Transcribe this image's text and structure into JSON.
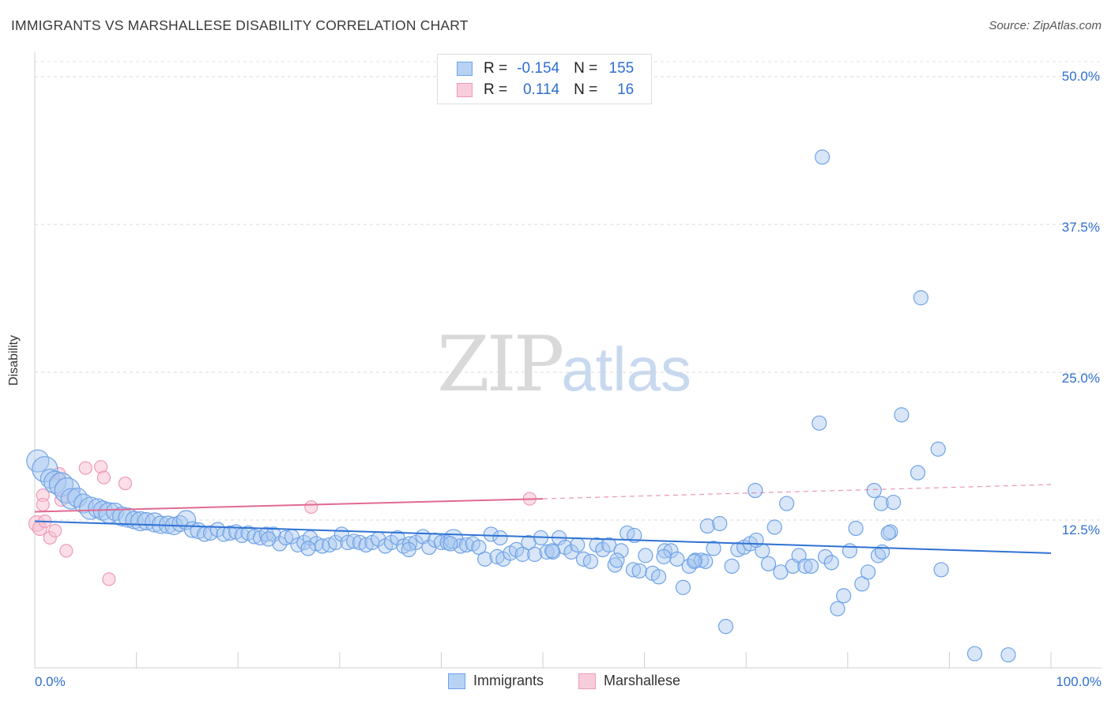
{
  "title": "IMMIGRANTS VS MARSHALLESE DISABILITY CORRELATION CHART",
  "source": "Source: ZipAtlas.com",
  "watermark": {
    "zip": "ZIP",
    "atlas": "atlas"
  },
  "legend": {
    "rows": [
      {
        "r_label": "R = ",
        "r_value": "-0.154",
        "n_label": "N = ",
        "n_value": "155",
        "color": "#6fa3e8"
      },
      {
        "r_label": "R = ",
        "r_value": "0.114",
        "n_label": "N = ",
        "n_value": "16",
        "color": "#f0a6bf"
      }
    ]
  },
  "bottom_legend": [
    "Immigrants",
    "Marshallese"
  ],
  "x_axis": {
    "min_label": "0.0%",
    "max_label": "100.0%"
  },
  "y_axis": {
    "label": "Disability",
    "ticks": [
      "50.0%",
      "37.5%",
      "25.0%",
      "12.5%"
    ]
  },
  "colors": {
    "immigrants_fill": "#a9c8f0",
    "immigrants_stroke": "#6fa3e8",
    "immigrants_line": "#2f72d3",
    "marshallese_fill": "#f7c3d3",
    "marshallese_stroke": "#ee9ab6",
    "marshallese_line": "#e06a92"
  },
  "chart_data": {
    "type": "scatter",
    "xlabel": "",
    "ylabel": "Disability",
    "xlim": [
      0,
      100
    ],
    "ylim": [
      0,
      52
    ],
    "grid": true,
    "series": [
      {
        "name": "Immigrants",
        "trend": {
          "x": [
            0,
            100
          ],
          "y": [
            12.4,
            9.7
          ],
          "dashed_from": null
        },
        "points": [
          [
            0.3,
            17.5,
            14
          ],
          [
            1,
            16.8,
            16
          ],
          [
            1.5,
            16,
            12
          ],
          [
            2,
            15.7,
            14
          ],
          [
            2.6,
            15.5,
            15
          ],
          [
            3.2,
            15,
            16
          ],
          [
            3.6,
            14.3,
            13
          ],
          [
            4.2,
            14.4,
            12
          ],
          [
            4.8,
            13.9,
            12
          ],
          [
            5.5,
            13.5,
            14
          ],
          [
            6.2,
            13.5,
            12
          ],
          [
            6.7,
            13.3,
            12
          ],
          [
            7.3,
            13.1,
            13
          ],
          [
            7.9,
            13.2,
            11
          ],
          [
            8.6,
            12.8,
            12
          ],
          [
            9.2,
            12.7,
            12
          ],
          [
            9.8,
            12.5,
            11
          ],
          [
            10.4,
            12.4,
            12
          ],
          [
            11,
            12.4,
            11
          ],
          [
            11.8,
            12.3,
            12
          ],
          [
            12.4,
            12.1,
            11
          ],
          [
            13.1,
            12.1,
            11
          ],
          [
            13.7,
            12.0,
            11
          ],
          [
            14.3,
            12.2,
            10
          ],
          [
            14.9,
            12.5,
            12
          ],
          [
            15.5,
            11.7,
            10
          ],
          [
            16.1,
            11.6,
            10
          ],
          [
            16.7,
            11.3,
            9
          ],
          [
            17.3,
            11.4,
            9
          ],
          [
            18,
            11.7,
            9
          ],
          [
            18.6,
            11.3,
            9
          ],
          [
            19.2,
            11.4,
            9
          ],
          [
            19.8,
            11.5,
            9
          ],
          [
            20.4,
            11.2,
            9
          ],
          [
            21,
            11.4,
            9
          ],
          [
            21.6,
            11.1,
            9
          ],
          [
            22.2,
            11.0,
            9
          ],
          [
            22.8,
            11.3,
            9
          ],
          [
            23.5,
            11.3,
            9
          ],
          [
            24.1,
            10.5,
            9
          ],
          [
            24.7,
            11.0,
            9
          ],
          [
            25.3,
            11.1,
            9
          ],
          [
            25.9,
            10.4,
            9
          ],
          [
            26.5,
            10.6,
            9
          ],
          [
            27.1,
            11.0,
            9
          ],
          [
            27.7,
            10.5,
            9
          ],
          [
            28.3,
            10.3,
            9
          ],
          [
            29,
            10.4,
            9
          ],
          [
            29.6,
            10.6,
            9
          ],
          [
            30.2,
            11.3,
            9
          ],
          [
            30.8,
            10.6,
            9
          ],
          [
            31.4,
            10.7,
            9
          ],
          [
            32,
            10.6,
            9
          ],
          [
            32.6,
            10.4,
            9
          ],
          [
            33.2,
            10.6,
            9
          ],
          [
            33.8,
            10.9,
            9
          ],
          [
            34.5,
            10.3,
            9
          ],
          [
            35.1,
            10.6,
            9
          ],
          [
            35.7,
            11.0,
            9
          ],
          [
            36.3,
            10.3,
            9
          ],
          [
            36.9,
            10.5,
            9
          ],
          [
            37.5,
            10.6,
            9
          ],
          [
            38.2,
            11.1,
            9
          ],
          [
            38.8,
            10.2,
            9
          ],
          [
            39.4,
            10.8,
            9
          ],
          [
            40,
            10.6,
            9
          ],
          [
            40.6,
            10.6,
            9
          ],
          [
            41.2,
            10.9,
            12
          ],
          [
            41.9,
            10.3,
            9
          ],
          [
            42.5,
            10.4,
            9
          ],
          [
            43.1,
            10.5,
            9
          ],
          [
            43.7,
            10.2,
            9
          ],
          [
            44.3,
            9.2,
            9
          ],
          [
            44.9,
            11.3,
            9
          ],
          [
            45.5,
            9.4,
            9
          ],
          [
            46.1,
            9.2,
            9
          ],
          [
            46.8,
            9.7,
            9
          ],
          [
            47.4,
            10.0,
            9
          ],
          [
            48,
            9.6,
            9
          ],
          [
            48.6,
            10.6,
            9
          ],
          [
            49.2,
            9.6,
            9
          ],
          [
            49.8,
            11.0,
            9
          ],
          [
            50.4,
            9.8,
            9
          ],
          [
            51,
            9.8,
            9
          ],
          [
            51.6,
            11.0,
            9
          ],
          [
            52.2,
            10.2,
            9
          ],
          [
            52.8,
            9.8,
            9
          ],
          [
            53.4,
            10.4,
            9
          ],
          [
            54,
            9.2,
            9
          ],
          [
            54.7,
            9.0,
            9
          ],
          [
            55.3,
            10.4,
            9
          ],
          [
            55.9,
            10.0,
            9
          ],
          [
            56.5,
            10.4,
            9
          ],
          [
            57.1,
            8.7,
            9
          ],
          [
            57.7,
            9.9,
            9
          ],
          [
            58.3,
            11.4,
            9
          ],
          [
            58.9,
            8.3,
            9
          ],
          [
            59.5,
            8.2,
            9
          ],
          [
            60.1,
            9.5,
            9
          ],
          [
            60.8,
            8.0,
            9
          ],
          [
            61.4,
            7.7,
            9
          ],
          [
            62,
            9.9,
            9
          ],
          [
            62.6,
            9.9,
            9
          ],
          [
            63.2,
            9.2,
            9
          ],
          [
            63.8,
            6.8,
            9
          ],
          [
            64.4,
            8.6,
            9
          ],
          [
            65,
            9.1,
            9
          ],
          [
            65.6,
            9.1,
            9
          ],
          [
            66.2,
            12.0,
            9
          ],
          [
            66.8,
            10.1,
            9
          ],
          [
            67.4,
            12.2,
            9
          ],
          [
            68,
            3.5,
            9
          ],
          [
            68.6,
            8.6,
            9
          ],
          [
            69.2,
            10.0,
            9
          ],
          [
            69.8,
            10.2,
            9
          ],
          [
            70.4,
            10.5,
            9
          ],
          [
            70.9,
            15.0,
            9
          ],
          [
            71.6,
            9.9,
            9
          ],
          [
            72.2,
            8.8,
            9
          ],
          [
            72.8,
            11.9,
            9
          ],
          [
            73.4,
            8.1,
            9
          ],
          [
            74,
            13.9,
            9
          ],
          [
            74.6,
            8.6,
            9
          ],
          [
            75.2,
            9.5,
            9
          ],
          [
            75.8,
            8.6,
            9
          ],
          [
            76.4,
            8.6,
            9
          ],
          [
            77.2,
            20.7,
            9
          ],
          [
            77.8,
            9.4,
            9
          ],
          [
            78.4,
            8.9,
            9
          ],
          [
            79,
            5.0,
            9
          ],
          [
            79.6,
            6.1,
            9
          ],
          [
            80.2,
            9.9,
            9
          ],
          [
            80.8,
            11.8,
            9
          ],
          [
            81.4,
            7.1,
            9
          ],
          [
            82,
            8.1,
            9
          ],
          [
            82.6,
            15.0,
            9
          ],
          [
            83,
            9.5,
            9
          ],
          [
            83.3,
            13.9,
            9
          ],
          [
            84.2,
            11.5,
            9
          ],
          [
            84.5,
            14.0,
            9
          ],
          [
            85.3,
            21.4,
            9
          ],
          [
            86.9,
            16.5,
            9
          ],
          [
            87.2,
            31.3,
            9
          ],
          [
            88.9,
            18.5,
            9
          ],
          [
            77.5,
            43.2,
            9
          ],
          [
            83.4,
            9.8,
            9
          ],
          [
            84.0,
            11.4,
            9
          ],
          [
            89.2,
            8.3,
            9
          ],
          [
            92.5,
            1.2,
            9
          ],
          [
            95.8,
            1.1,
            9
          ],
          [
            36.8,
            10.0,
            9
          ],
          [
            40.9,
            10.5,
            9
          ],
          [
            26.9,
            10.1,
            9
          ],
          [
            23.0,
            10.9,
            9
          ],
          [
            45.8,
            11.0,
            9
          ],
          [
            50.9,
            9.9,
            9
          ],
          [
            59.0,
            11.2,
            9
          ],
          [
            66.0,
            9.0,
            9
          ],
          [
            71.0,
            10.8,
            9
          ],
          [
            64.9,
            9.0,
            9
          ],
          [
            61.9,
            9.4,
            9
          ],
          [
            57.3,
            9.1,
            9
          ]
        ]
      },
      {
        "name": "Marshallese",
        "trend": {
          "x": [
            0,
            50,
            100
          ],
          "y": [
            13.2,
            14.3,
            15.5
          ],
          "dashed_from": 50
        },
        "points": [
          [
            0.2,
            12.2,
            10
          ],
          [
            0.5,
            11.8,
            9
          ],
          [
            0.8,
            14.6,
            8
          ],
          [
            0.8,
            13.8,
            8
          ],
          [
            1.0,
            12.4,
            8
          ],
          [
            1.5,
            11.0,
            8
          ],
          [
            2.0,
            11.6,
            8
          ],
          [
            2.4,
            16.4,
            8
          ],
          [
            2.6,
            14.2,
            8
          ],
          [
            3.1,
            9.9,
            8
          ],
          [
            5.0,
            16.9,
            8
          ],
          [
            6.5,
            17.0,
            8
          ],
          [
            6.8,
            16.1,
            8
          ],
          [
            7.3,
            7.5,
            8
          ],
          [
            8.9,
            15.6,
            8
          ],
          [
            27.2,
            13.6,
            8
          ],
          [
            48.7,
            14.3,
            8
          ]
        ]
      }
    ]
  }
}
